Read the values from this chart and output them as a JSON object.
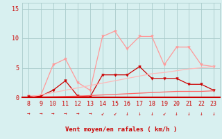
{
  "x": [
    8,
    9,
    10,
    11,
    12,
    13,
    14,
    15,
    16,
    17,
    18,
    19,
    20,
    21,
    22,
    23
  ],
  "rafales": [
    0.2,
    0.3,
    5.5,
    6.5,
    2.5,
    1.2,
    10.3,
    11.2,
    8.2,
    10.3,
    10.3,
    5.5,
    8.5,
    8.5,
    5.5,
    5.2
  ],
  "moyen": [
    0.1,
    0.2,
    1.2,
    2.8,
    0.2,
    0.1,
    3.8,
    3.8,
    3.8,
    5.2,
    3.2,
    3.2,
    3.2,
    2.2,
    2.2,
    1.2
  ],
  "tendance_rafales": [
    0.0,
    0.4,
    0.8,
    1.2,
    1.6,
    2.0,
    2.4,
    2.8,
    3.2,
    3.6,
    4.0,
    4.2,
    4.5,
    4.8,
    5.0,
    5.2
  ],
  "tendance_moyen": [
    0.0,
    0.05,
    0.1,
    0.15,
    0.2,
    0.3,
    0.4,
    0.5,
    0.6,
    0.7,
    0.8,
    0.9,
    1.0,
    1.0,
    1.0,
    1.1
  ],
  "color_rafales": "#FF9999",
  "color_moyen": "#CC0000",
  "color_trend_rafales": "#FFB8B8",
  "color_trend_moyen": "#FF6666",
  "bg_color": "#D8F0F0",
  "grid_color": "#AACCCC",
  "axis_color": "#CC0000",
  "xlabel": "Vent moyen/en rafales ( km/h )",
  "ylim": [
    0,
    16
  ],
  "yticks": [
    0,
    5,
    10,
    15
  ],
  "wind_arrows": [
    "→",
    "→",
    "→",
    "→",
    "→",
    "→",
    "↙",
    "↙",
    "↓",
    "↓",
    "↓",
    "↙",
    "↓",
    "↓",
    "↓",
    "↓"
  ],
  "tick_fontsize": 6,
  "label_fontsize": 6.5,
  "arrow_fontsize": 5.5
}
